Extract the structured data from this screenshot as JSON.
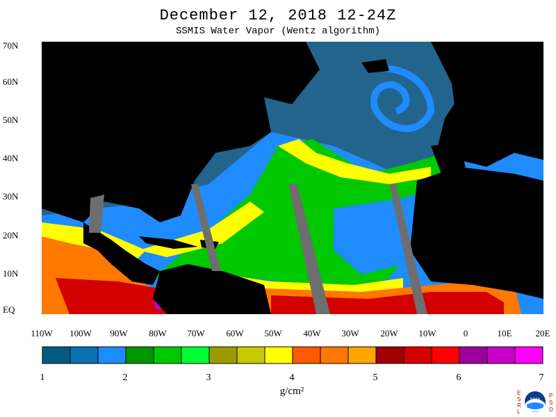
{
  "title": "December 12, 2018 12-24Z",
  "subtitle": "SSMIS Water Vapor (Wentz algorithm)",
  "lat_labels": [
    "70N",
    "60N",
    "50N",
    "40N",
    "30N",
    "20N",
    "10N",
    "EQ"
  ],
  "lon_labels": [
    "110W",
    "100W",
    "90W",
    "80W",
    "70W",
    "60W",
    "50W",
    "40W",
    "30W",
    "20W",
    "10W",
    "0",
    "10E",
    "20E"
  ],
  "colorbar": {
    "ticks": [
      "1",
      "2",
      "3",
      "4",
      "5",
      "6",
      "7"
    ],
    "unit": "g/cm²",
    "colors": [
      "#005a82",
      "#0a70b0",
      "#1e8cff",
      "#009600",
      "#00c800",
      "#00ff32",
      "#9b9b00",
      "#c8c800",
      "#ffff00",
      "#ff5a00",
      "#ff7800",
      "#ffa500",
      "#a00000",
      "#d20000",
      "#ff0000",
      "#9b009b",
      "#c800c8",
      "#ff00ff"
    ]
  },
  "map_colors": {
    "land": "#000000",
    "missing": "#6e6e6e",
    "ocean_dry": "#23648c",
    "ocean_mid": "#1e8cff",
    "green": "#00c800",
    "yellow": "#ffff00",
    "orange": "#ff7800",
    "red": "#d20000",
    "magenta": "#c800c8"
  },
  "logo": {
    "left_letters": "ESRL",
    "right_letters": "PSD",
    "badge": "NOAA"
  }
}
